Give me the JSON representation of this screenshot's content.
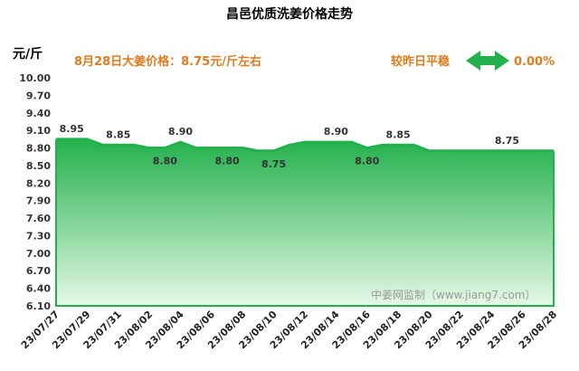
{
  "chart_data": {
    "type": "area",
    "title": "昌邑优质洗姜价格走势",
    "ylabel": "元/斤",
    "ylim": [
      6.1,
      10.0
    ],
    "y_ticks": [
      "6.10",
      "6.40",
      "6.70",
      "7.00",
      "7.30",
      "7.60",
      "7.90",
      "8.20",
      "8.50",
      "8.80",
      "9.10",
      "9.40",
      "9.70",
      "10.00"
    ],
    "x_ticks": [
      "23/07/27",
      "23/07/29",
      "23/07/31",
      "23/08/02",
      "23/08/04",
      "23/08/06",
      "23/08/08",
      "23/08/10",
      "23/08/12",
      "23/08/14",
      "23/08/16",
      "23/08/18",
      "23/08/20",
      "23/08/22",
      "23/08/24",
      "23/08/26",
      "23/08/28"
    ],
    "x": [
      "07/27",
      "07/28",
      "07/29",
      "07/30",
      "07/31",
      "08/01",
      "08/02",
      "08/03",
      "08/04",
      "08/05",
      "08/06",
      "08/07",
      "08/08",
      "08/09",
      "08/10",
      "08/11",
      "08/12",
      "08/13",
      "08/14",
      "08/15",
      "08/16",
      "08/17",
      "08/18",
      "08/19",
      "08/20",
      "08/21",
      "08/22",
      "08/23",
      "08/24",
      "08/25",
      "08/26",
      "08/27",
      "08/28"
    ],
    "values": [
      8.95,
      8.95,
      8.95,
      8.85,
      8.85,
      8.85,
      8.8,
      8.8,
      8.9,
      8.8,
      8.8,
      8.8,
      8.8,
      8.75,
      8.75,
      8.85,
      8.9,
      8.9,
      8.9,
      8.9,
      8.8,
      8.85,
      8.85,
      8.85,
      8.75,
      8.75,
      8.75,
      8.75,
      8.75,
      8.75,
      8.75,
      8.75,
      8.75
    ],
    "data_labels": [
      {
        "index": 1,
        "text": "8.95",
        "pos": "above"
      },
      {
        "index": 4,
        "text": "8.85",
        "pos": "above"
      },
      {
        "index": 7,
        "text": "8.80",
        "pos": "below"
      },
      {
        "index": 8,
        "text": "8.90",
        "pos": "above"
      },
      {
        "index": 11,
        "text": "8.80",
        "pos": "below"
      },
      {
        "index": 14,
        "text": "8.75",
        "pos": "below"
      },
      {
        "index": 18,
        "text": "8.90",
        "pos": "above"
      },
      {
        "index": 20,
        "text": "8.80",
        "pos": "below"
      },
      {
        "index": 22,
        "text": "8.85",
        "pos": "above"
      },
      {
        "index": 29,
        "text": "8.75",
        "pos": "above"
      }
    ],
    "colors": {
      "line": "#22b14c",
      "fill_top": "#22b14c",
      "fill_bottom": "#e6f8e6",
      "headline": "#e07b1e",
      "arrow": "#22b14c"
    },
    "grid": false,
    "legend": "none"
  },
  "headline": {
    "price_text": "8月28日大姜价格：8.75元/斤左右",
    "compare_label": "较昨日平稳",
    "arrow_icon": "double-arrow-icon",
    "change_text": "0.00%"
  },
  "watermark": "中姜网监制（www.jiang7.com）"
}
